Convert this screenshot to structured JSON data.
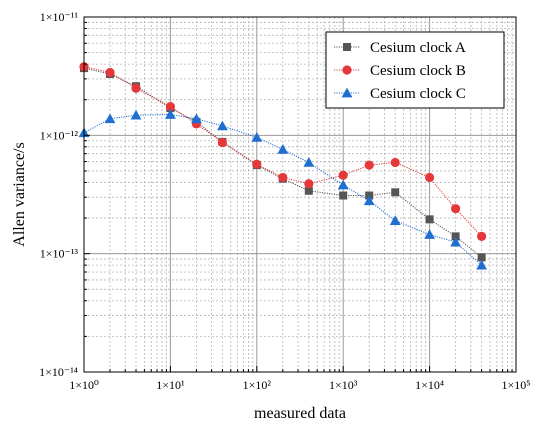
{
  "chart_data": {
    "type": "line",
    "xlabel": "measured data",
    "ylabel": "Allen variance/s",
    "xscale": "log",
    "yscale": "log",
    "xlim": [
      1,
      100000
    ],
    "ylim": [
      1e-14,
      1e-11
    ],
    "grid": true,
    "legend_position": "top-right",
    "x_ticks": [
      {
        "value": 1,
        "label": "1×10⁰"
      },
      {
        "value": 10,
        "label": "1×10¹"
      },
      {
        "value": 100,
        "label": "1×10²"
      },
      {
        "value": 1000,
        "label": "1×10³"
      },
      {
        "value": 10000,
        "label": "1×10⁴"
      },
      {
        "value": 100000,
        "label": "1×10⁵"
      }
    ],
    "y_ticks": [
      {
        "value": 1e-14,
        "label": "1×10⁻¹⁴"
      },
      {
        "value": 1e-13,
        "label": "1×10⁻¹³"
      },
      {
        "value": 1e-12,
        "label": "1×10⁻¹²"
      },
      {
        "value": 1e-11,
        "label": "1×10⁻¹¹"
      }
    ],
    "series": [
      {
        "name": "Cesium clock A",
        "color": "#555555",
        "marker": "square",
        "x": [
          1,
          2,
          4,
          10,
          20,
          40,
          100,
          200,
          400,
          1000,
          2000,
          4000,
          10000,
          20000,
          40000
        ],
        "values": [
          3.7e-12,
          3.3e-12,
          2.6e-12,
          1.7e-12,
          1.3e-12,
          8.8e-13,
          5.6e-13,
          4.3e-13,
          3.4e-13,
          3.1e-13,
          3.1e-13,
          3.3e-13,
          1.95e-13,
          1.4e-13,
          9.3e-14
        ]
      },
      {
        "name": "Cesium clock B",
        "color": "#e5383b",
        "marker": "circle",
        "x": [
          1,
          2,
          4,
          10,
          20,
          40,
          100,
          200,
          400,
          1000,
          2000,
          4000,
          10000,
          20000,
          40000
        ],
        "values": [
          3.8e-12,
          3.4e-12,
          2.5e-12,
          1.75e-12,
          1.25e-12,
          8.7e-13,
          5.7e-13,
          4.4e-13,
          3.9e-13,
          4.6e-13,
          5.6e-13,
          5.9e-13,
          4.4e-13,
          2.4e-13,
          1.4e-13
        ]
      },
      {
        "name": "Cesium clock C",
        "color": "#1f6fd1",
        "marker": "triangle",
        "x": [
          1,
          2,
          4,
          10,
          20,
          40,
          100,
          200,
          400,
          1000,
          2000,
          4000,
          10000,
          20000,
          40000
        ],
        "values": [
          1.05e-12,
          1.38e-12,
          1.48e-12,
          1.5e-12,
          1.38e-12,
          1.2e-12,
          9.6e-13,
          7.6e-13,
          5.9e-13,
          3.8e-13,
          2.8e-13,
          1.9e-13,
          1.45e-13,
          1.25e-13,
          8e-14
        ]
      }
    ]
  }
}
